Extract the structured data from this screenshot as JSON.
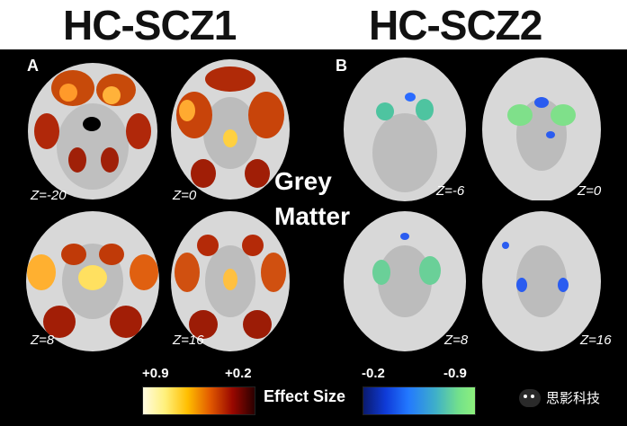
{
  "titles": {
    "left": "HC-SCZ1",
    "right": "HC-SCZ2"
  },
  "panels": {
    "a": "A",
    "b": "B"
  },
  "center_label": {
    "line1": "Grey",
    "line2": "Matter"
  },
  "left_slices": [
    {
      "z": "Z=-20"
    },
    {
      "z": "Z=0"
    },
    {
      "z": "Z=8"
    },
    {
      "z": "Z=16"
    }
  ],
  "right_slices": [
    {
      "z": "Z=-6"
    },
    {
      "z": "Z=0"
    },
    {
      "z": "Z=8"
    },
    {
      "z": "Z=16"
    }
  ],
  "colorbar": {
    "warm_high": "+0.9",
    "warm_low": "+0.2",
    "cool_low": "-0.2",
    "cool_high": "-0.9",
    "label": "Effect Size"
  },
  "watermark": {
    "text": "思影科技"
  },
  "colors": {
    "warm": "#e04000",
    "cool": "#3a7bff"
  }
}
